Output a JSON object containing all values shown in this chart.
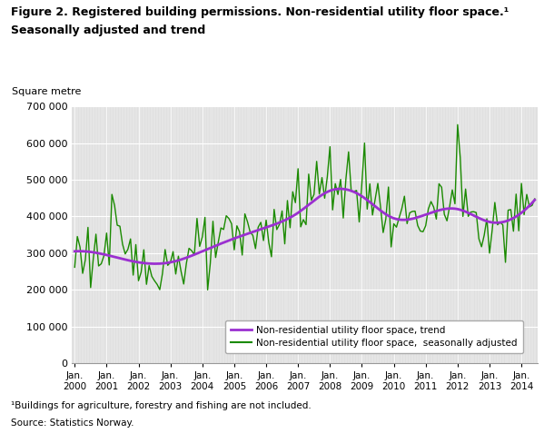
{
  "title_line1": "Figure 2. Registered building permissions. Non-residential utility floor space.¹",
  "title_line2": "Seasonally adjusted and trend",
  "ylabel": "Square metre",
  "footnote1": "¹Buildings for agriculture, forestry and fishing are not included.",
  "footnote2": "Source: Statistics Norway.",
  "ylim": [
    0,
    700000
  ],
  "yticks": [
    0,
    100000,
    200000,
    300000,
    400000,
    500000,
    600000,
    700000
  ],
  "ytick_labels": [
    "0",
    "100 000",
    "200 000",
    "300 000",
    "400 000",
    "500 000",
    "600 000",
    "700 000"
  ],
  "xtick_labels": [
    "Jan.\n2000",
    "Jan.\n2001",
    "Jan.\n2002",
    "Jan.\n2003",
    "Jan.\n2004",
    "Jan.\n2005",
    "Jan.\n2006",
    "Jan.\n2007",
    "Jan.\n2008",
    "Jan.\n2009",
    "Jan.\n2010",
    "Jan.\n2011",
    "Jan.\n2012",
    "Jan.\n2013",
    "Jan.\n2014"
  ],
  "trend_color": "#9b30d0",
  "seasonal_color": "#1a8a00",
  "background_color": "#e0e0e0",
  "legend_trend": "Non-residential utility floor space, trend",
  "legend_seasonal": "Non-residential utility floor space,  seasonally adjusted"
}
